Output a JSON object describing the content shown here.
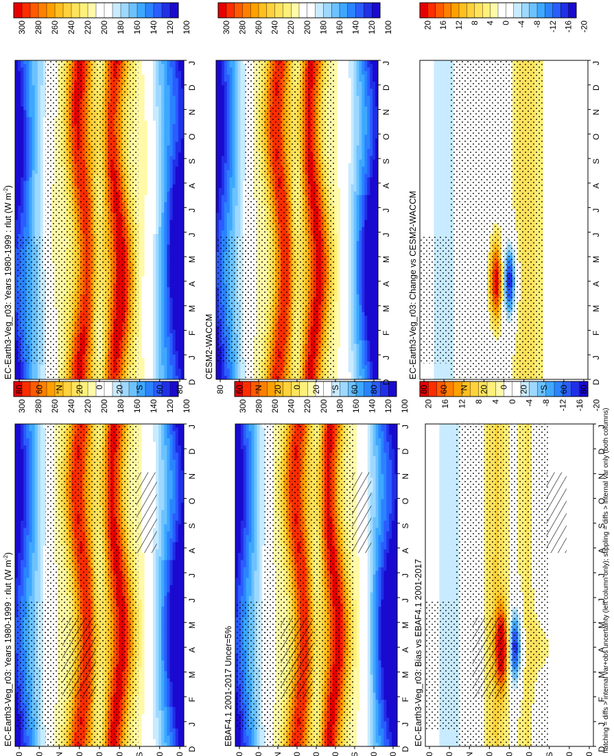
{
  "footnote": "hatching = diffs > internal var+obs uncertainty (left column only); stippling = diffs > internal var only (both columns)",
  "month_ticks": [
    "D",
    "J",
    "F",
    "M",
    "A",
    "M",
    "J",
    "J",
    "A",
    "S",
    "O",
    "N",
    "D",
    "J"
  ],
  "lat_ticks": [
    "80",
    "60",
    "°N",
    "20",
    "0",
    "20",
    "°S",
    "60",
    "80"
  ],
  "palettes": {
    "abs": [
      "#e60000",
      "#ff2d00",
      "#ff5a00",
      "#ff8000",
      "#ffa000",
      "#ffbf1f",
      "#ffd23d",
      "#ffe35c",
      "#fff07a",
      "#fff9a8",
      "#ffffff",
      "#ffffff",
      "#c8ebff",
      "#9ed8ff",
      "#6cc2ff",
      "#3ea8ff",
      "#2a84ff",
      "#2a5dff",
      "#2030e6",
      "#1a0ad0"
    ],
    "diff": [
      "#e60000",
      "#ff2d00",
      "#ff5a00",
      "#ff8000",
      "#ffa000",
      "#ffbf1f",
      "#ffd23d",
      "#ffe35c",
      "#fff07a",
      "#fff9a8",
      "#ffffff",
      "#ffffff",
      "#c8ebff",
      "#9ed8ff",
      "#6cc2ff",
      "#3ea8ff",
      "#2a84ff",
      "#2a5dff",
      "#2030e6",
      "#1a0ad0"
    ]
  },
  "colorbar_labels": {
    "abs": [
      "300",
      "280",
      "260",
      "240",
      "220",
      "200",
      "180",
      "160",
      "140",
      "120",
      "100"
    ],
    "diff": [
      "20",
      "16",
      "12",
      "8",
      "4",
      "0",
      "-4",
      "-8",
      "-12",
      "-16",
      "-20"
    ]
  },
  "panels": [
    {
      "id": "left-top",
      "title": "EC-Earth3-Veg_r03: Years 1980-1999 : rlut (W m",
      "units_exponent": "-2",
      "title_tail": ")",
      "kind": "abs",
      "hatch": true
    },
    {
      "id": "right-top",
      "title": "EC-Earth3-Veg_r03: Years 1980-1999 : rlut (W m",
      "units_exponent": "-2",
      "title_tail": ")",
      "kind": "abs",
      "hatch": false
    },
    {
      "id": "left-middle",
      "title": "EBAF4.1 2001-2017 Uncer=5%",
      "units_exponent": "",
      "title_tail": "",
      "kind": "abs",
      "hatch": true
    },
    {
      "id": "right-middle",
      "title": "CESM2-WACCM",
      "units_exponent": "",
      "title_tail": "",
      "kind": "abs",
      "hatch": false
    },
    {
      "id": "left-bottom",
      "title": "EC-Earth3-Veg_r03: Bias vs EBAF4.1 2001-2017",
      "units_exponent": "",
      "title_tail": "",
      "kind": "diff",
      "hatch": true
    },
    {
      "id": "right-bottom",
      "title": "EC-Earth3-Veg_r03: Change vs CESM2-WACCM",
      "units_exponent": "",
      "title_tail": "",
      "kind": "diff",
      "hatch": false
    }
  ],
  "chart_data": [
    {
      "type": "heatmap",
      "title": "EC-Earth3-Veg_r03: Years 1980-1999 : rlut (W m-2)",
      "x": [
        "D",
        "J",
        "F",
        "M",
        "A",
        "M",
        "J",
        "J",
        "A",
        "S",
        "O",
        "N",
        "D",
        "J"
      ],
      "y": [
        "80N",
        "60N",
        "20N",
        "0",
        "20S",
        "60S",
        "80S"
      ],
      "colorbar": [
        300,
        280,
        260,
        240,
        220,
        200,
        180,
        160,
        140,
        120,
        100
      ]
    },
    {
      "type": "heatmap",
      "title": "EBAF4.1 2001-2017 Uncer=5%",
      "x": [
        "D",
        "J",
        "F",
        "M",
        "A",
        "M",
        "J",
        "J",
        "A",
        "S",
        "O",
        "N",
        "D",
        "J"
      ],
      "y": [
        "80N",
        "60N",
        "20N",
        "0",
        "20S",
        "60S",
        "80S"
      ],
      "colorbar": [
        300,
        280,
        260,
        240,
        220,
        200,
        180,
        160,
        140,
        120,
        100
      ]
    },
    {
      "type": "heatmap",
      "title": "EC-Earth3-Veg_r03: Bias vs EBAF4.1 2001-2017",
      "x": [
        "D",
        "J",
        "F",
        "M",
        "A",
        "M",
        "J",
        "J",
        "A",
        "S",
        "O",
        "N",
        "D",
        "J"
      ],
      "y": [
        "80N",
        "60N",
        "20N",
        "0",
        "20S",
        "60S",
        "80S"
      ],
      "colorbar": [
        20,
        16,
        12,
        8,
        4,
        0,
        -4,
        -8,
        -12,
        -16,
        -20
      ]
    },
    {
      "type": "heatmap",
      "title": "EC-Earth3-Veg_r03: Years 1980-1999 : rlut (W m-2)",
      "x": [
        "D",
        "J",
        "F",
        "M",
        "A",
        "M",
        "J",
        "J",
        "A",
        "S",
        "O",
        "N",
        "D",
        "J"
      ],
      "y": [
        "80N",
        "60N",
        "20N",
        "0",
        "20S",
        "60S",
        "80S"
      ],
      "colorbar": [
        300,
        280,
        260,
        240,
        220,
        200,
        180,
        160,
        140,
        120,
        100
      ]
    },
    {
      "type": "heatmap",
      "title": "CESM2-WACCM",
      "x": [
        "D",
        "J",
        "F",
        "M",
        "A",
        "M",
        "J",
        "J",
        "A",
        "S",
        "O",
        "N",
        "D",
        "J"
      ],
      "y": [
        "80N",
        "60N",
        "20N",
        "0",
        "20S",
        "60S",
        "80S"
      ],
      "colorbar": [
        300,
        280,
        260,
        240,
        220,
        200,
        180,
        160,
        140,
        120,
        100
      ]
    },
    {
      "type": "heatmap",
      "title": "EC-Earth3-Veg_r03: Change vs CESM2-WACCM",
      "x": [
        "D",
        "J",
        "F",
        "M",
        "A",
        "M",
        "J",
        "J",
        "A",
        "S",
        "O",
        "N",
        "D",
        "J"
      ],
      "y": [
        "80N",
        "60N",
        "20N",
        "0",
        "20S",
        "60S",
        "80S"
      ],
      "colorbar": [
        20,
        16,
        12,
        8,
        4,
        0,
        -4,
        -8,
        -12,
        -16,
        -20
      ]
    }
  ]
}
